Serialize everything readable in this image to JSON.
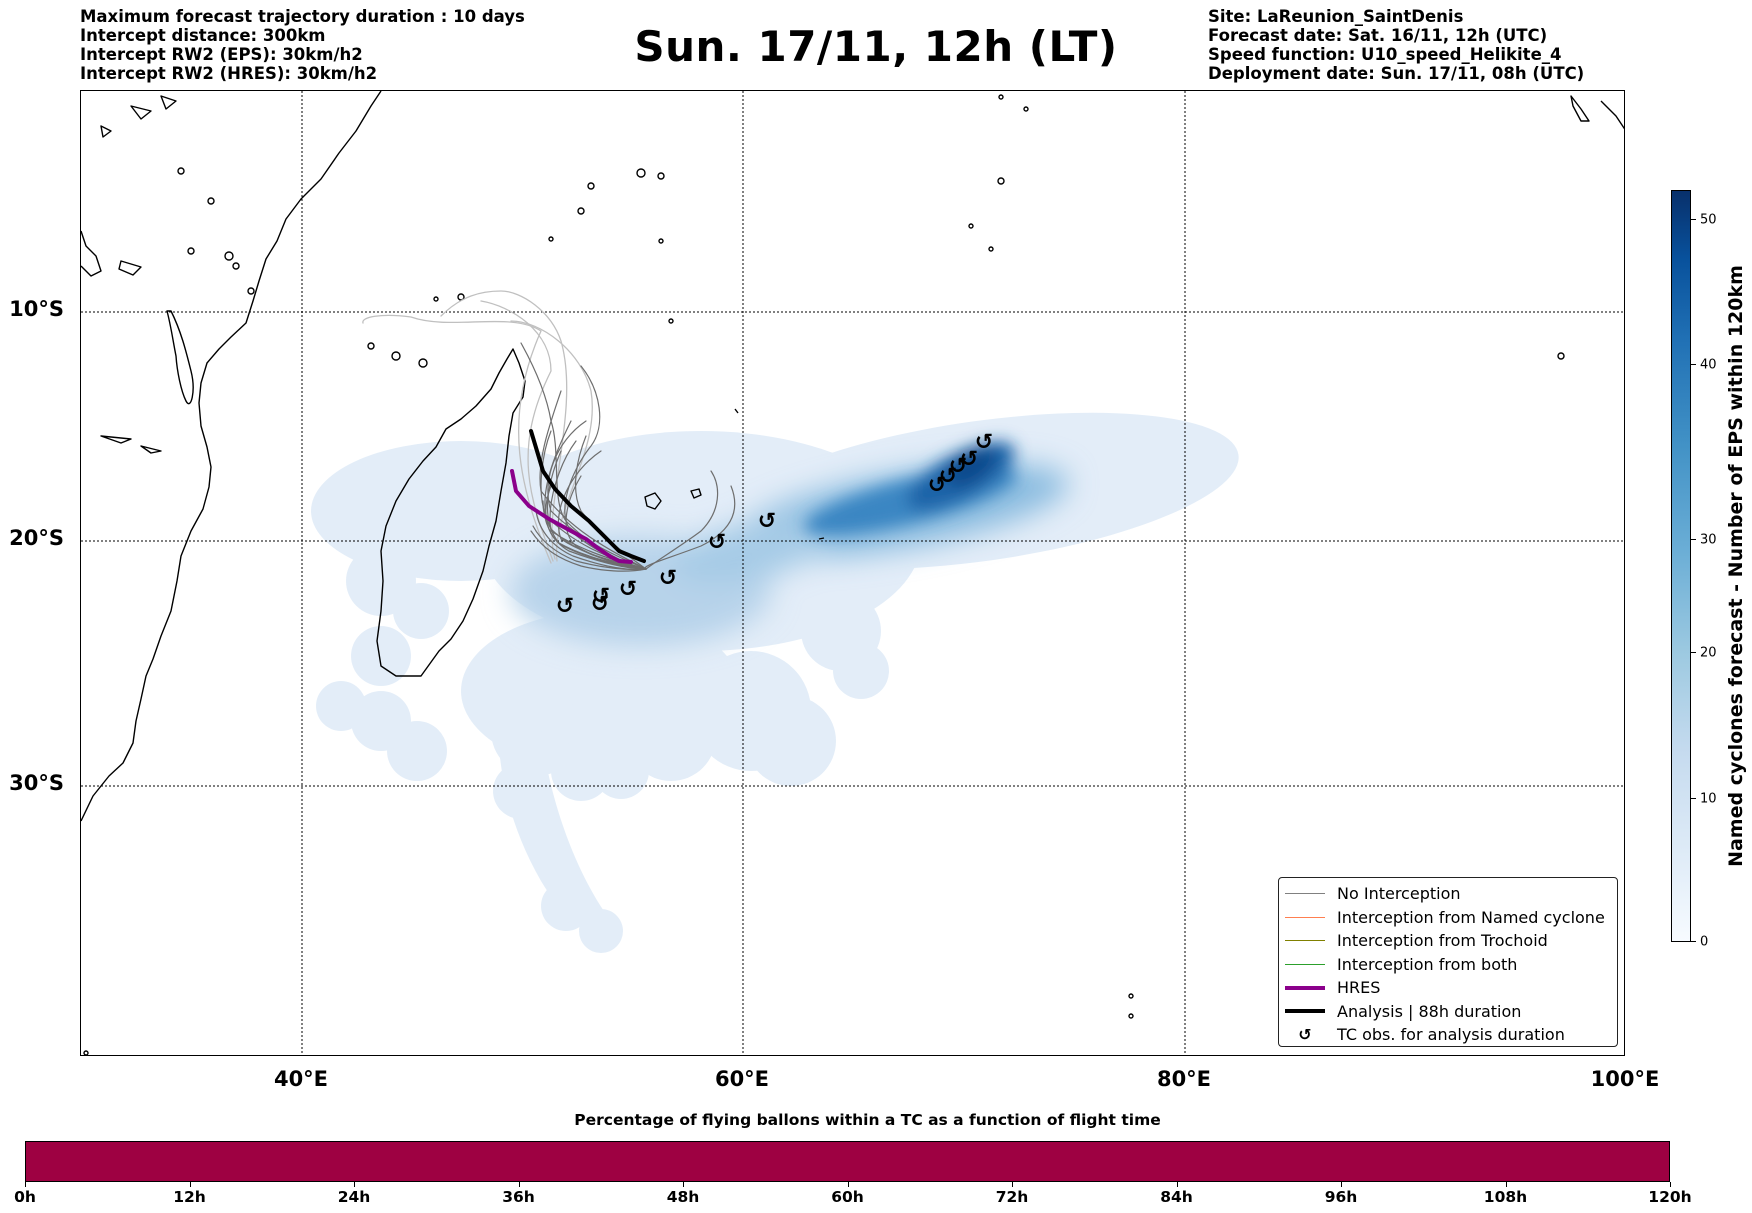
{
  "header": {
    "left_lines": [
      "Maximum forecast trajectory duration : 10 days",
      "Intercept distance: 300km",
      "Intercept RW2 (EPS):  30km/h2",
      "Intercept RW2 (HRES): 30km/h2"
    ],
    "title": "Sun. 17/11, 12h (LT)",
    "right_lines": [
      "Site: LaReunion_SaintDenis",
      "Forecast date: Sat. 16/11, 12h (UTC)",
      "Speed function: U10_speed_Helikite_4",
      "Deployment date: Sun. 17/11, 08h (UTC)"
    ]
  },
  "map": {
    "lat_labels": [
      "10°S",
      "20°S",
      "30°S"
    ],
    "lon_labels": [
      "40°E",
      "60°E",
      "80°E",
      "100°E"
    ],
    "tc_marker_glyph": "↺",
    "colors": {
      "no_interception": "#808080",
      "named_cyclone": "#ff7f50",
      "trochoid": "#808000",
      "both": "#2ca02c",
      "hres": "#8b008b",
      "analysis": "#000000",
      "density_low": "#deebf7",
      "density_high": "#08306b"
    }
  },
  "legend": {
    "items": [
      {
        "label": "No Interception",
        "style": "no_interception"
      },
      {
        "label": "Interception from Named cyclone",
        "style": "named_cyclone"
      },
      {
        "label": "Interception from Trochoid",
        "style": "trochoid"
      },
      {
        "label": "Interception from both",
        "style": "both"
      },
      {
        "label": "HRES",
        "style": "hres"
      },
      {
        "label": "Analysis | 88h duration",
        "style": "analysis"
      },
      {
        "label": "TC obs. for analysis duration",
        "style": "tc-marker"
      }
    ]
  },
  "colorbar": {
    "label": "Named cyclones forecast - Number of EPS within 120km",
    "ticks": [
      "0",
      "10",
      "20",
      "30",
      "40",
      "50"
    ]
  },
  "flight_bar": {
    "title": "Percentage of flying ballons within a TC as a function of flight time",
    "ticks": [
      "0h",
      "12h",
      "24h",
      "36h",
      "48h",
      "60h",
      "72h",
      "84h",
      "96h",
      "108h",
      "120h"
    ],
    "color": "#9e0142"
  }
}
